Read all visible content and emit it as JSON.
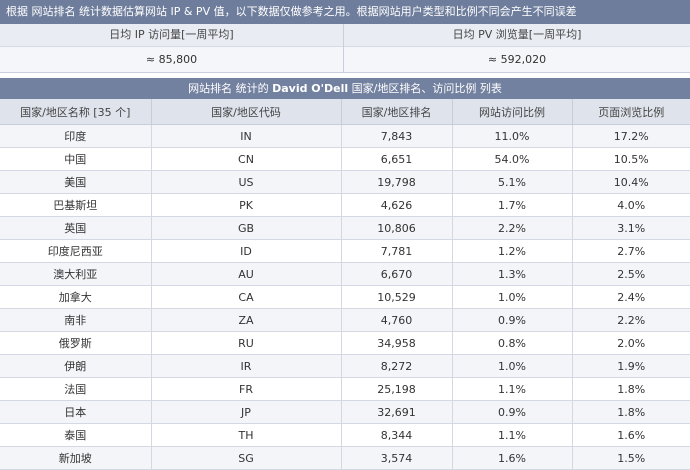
{
  "notice": "根据 网站排名 统计数据估算网站 IP & PV 值，以下数据仅做参考之用。根据网站用户类型和比例不同会产生不同误差",
  "stats": [
    {
      "label": "日均 IP 访问量[一周平均]",
      "value": "≈ 85,800"
    },
    {
      "label": "日均 PV 浏览量[一周平均]",
      "value": "≈ 592,020"
    }
  ],
  "section": {
    "prefix": "网站排名 统计的",
    "site": "David O'Dell",
    "suffix": "国家/地区排名、访问比例 列表"
  },
  "table": {
    "headers": [
      "国家/地区名称 [35 个]",
      "国家/地区代码",
      "国家/地区排名",
      "网站访问比例",
      "页面浏览比例"
    ],
    "rows": [
      [
        "印度",
        "IN",
        "7,843",
        "11.0%",
        "17.2%"
      ],
      [
        "中国",
        "CN",
        "6,651",
        "54.0%",
        "10.5%"
      ],
      [
        "美国",
        "US",
        "19,798",
        "5.1%",
        "10.4%"
      ],
      [
        "巴基斯坦",
        "PK",
        "4,626",
        "1.7%",
        "4.0%"
      ],
      [
        "英国",
        "GB",
        "10,806",
        "2.2%",
        "3.1%"
      ],
      [
        "印度尼西亚",
        "ID",
        "7,781",
        "1.2%",
        "2.7%"
      ],
      [
        "澳大利亚",
        "AU",
        "6,670",
        "1.3%",
        "2.5%"
      ],
      [
        "加拿大",
        "CA",
        "10,529",
        "1.0%",
        "2.4%"
      ],
      [
        "南非",
        "ZA",
        "4,760",
        "0.9%",
        "2.2%"
      ],
      [
        "俄罗斯",
        "RU",
        "34,958",
        "0.8%",
        "2.0%"
      ],
      [
        "伊朗",
        "IR",
        "8,272",
        "1.0%",
        "1.9%"
      ],
      [
        "法国",
        "FR",
        "25,198",
        "1.1%",
        "1.8%"
      ],
      [
        "日本",
        "JP",
        "32,691",
        "0.9%",
        "1.8%"
      ],
      [
        "泰国",
        "TH",
        "8,344",
        "1.1%",
        "1.6%"
      ],
      [
        "新加坡",
        "SG",
        "3,574",
        "1.6%",
        "1.5%"
      ]
    ]
  }
}
